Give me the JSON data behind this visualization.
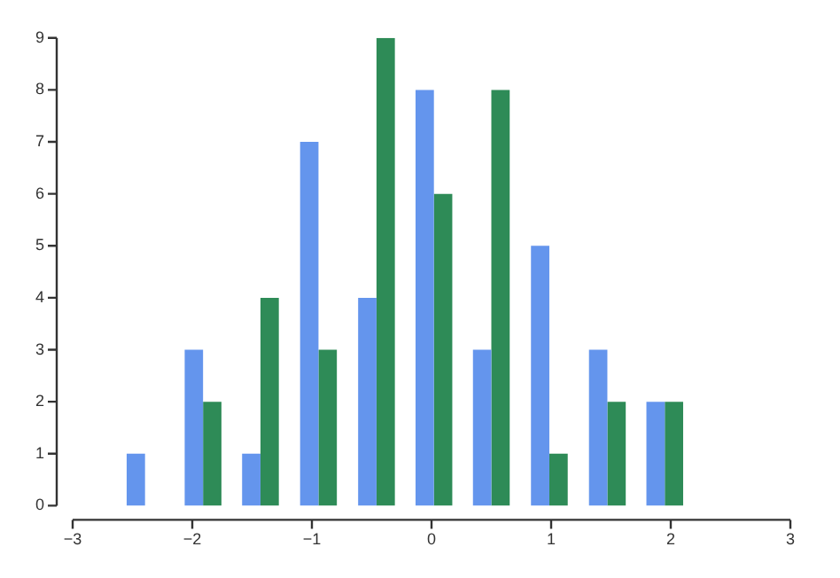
{
  "chart_data": {
    "type": "histogram",
    "bins": [
      -2.64,
      -2.15,
      -1.67,
      -1.19,
      -0.7,
      -0.22,
      0.26,
      0.74,
      1.23,
      1.71,
      2.19
    ],
    "series": [
      {
        "color": "#6495ed",
        "values": [
          1,
          3,
          1,
          7,
          4,
          8,
          3,
          5,
          3,
          2
        ]
      },
      {
        "color": "#2e8b57",
        "values": [
          0,
          2,
          4,
          3,
          9,
          6,
          8,
          1,
          2,
          2
        ]
      }
    ],
    "xlim": [
      -3,
      3
    ],
    "xticks": [
      {
        "value": -3,
        "label": "−3"
      },
      {
        "value": -2,
        "label": "−2"
      },
      {
        "value": -1,
        "label": "−1"
      },
      0,
      1,
      2,
      3
    ],
    "ylim": [
      0,
      9
    ],
    "yticks": [
      0,
      1,
      2,
      3,
      4,
      5,
      6,
      7,
      8,
      9
    ],
    "grid": false,
    "legend": false
  }
}
